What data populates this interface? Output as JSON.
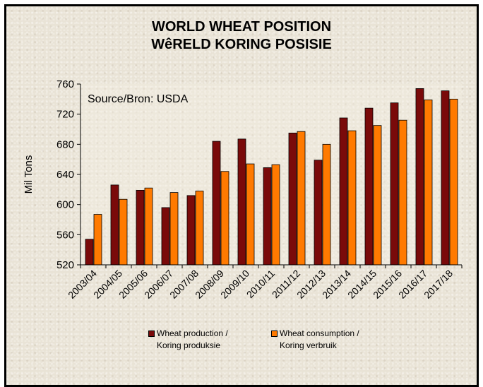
{
  "chart_data": {
    "type": "bar",
    "title": "WORLD WHEAT POSITION",
    "subtitle": "WêRELD KORING POSISIE",
    "ylabel": "Mil Tons",
    "xlabel": "",
    "ylim": [
      520,
      760
    ],
    "yticks": [
      520,
      560,
      600,
      640,
      680,
      720,
      760
    ],
    "annotation": "Source/Bron: USDA",
    "grid": false,
    "legend_position": "bottom",
    "categories": [
      "2003/04",
      "2004/05",
      "2005/06",
      "2006/07",
      "2007/08",
      "2008/09",
      "2009/10",
      "2010/11",
      "2011/12",
      "2012/13",
      "2013/14",
      "2014/15",
      "2015/16",
      "2016/17",
      "2017/18"
    ],
    "series": [
      {
        "name": "Wheat production / Koring produksie",
        "legend_lines": [
          "Wheat production /",
          "Koring produksie"
        ],
        "color": "#7a0a0a",
        "values": [
          554,
          626,
          619,
          596,
          612,
          684,
          687,
          649,
          695,
          659,
          715,
          728,
          735,
          754,
          751
        ]
      },
      {
        "name": "Wheat consumption / Koring verbruik",
        "legend_lines": [
          "Wheat consumption /",
          "Koring verbruik"
        ],
        "color": "#ff7a00",
        "values": [
          587,
          607,
          622,
          616,
          618,
          644,
          654,
          653,
          697,
          680,
          698,
          705,
          712,
          739,
          740
        ]
      }
    ]
  }
}
